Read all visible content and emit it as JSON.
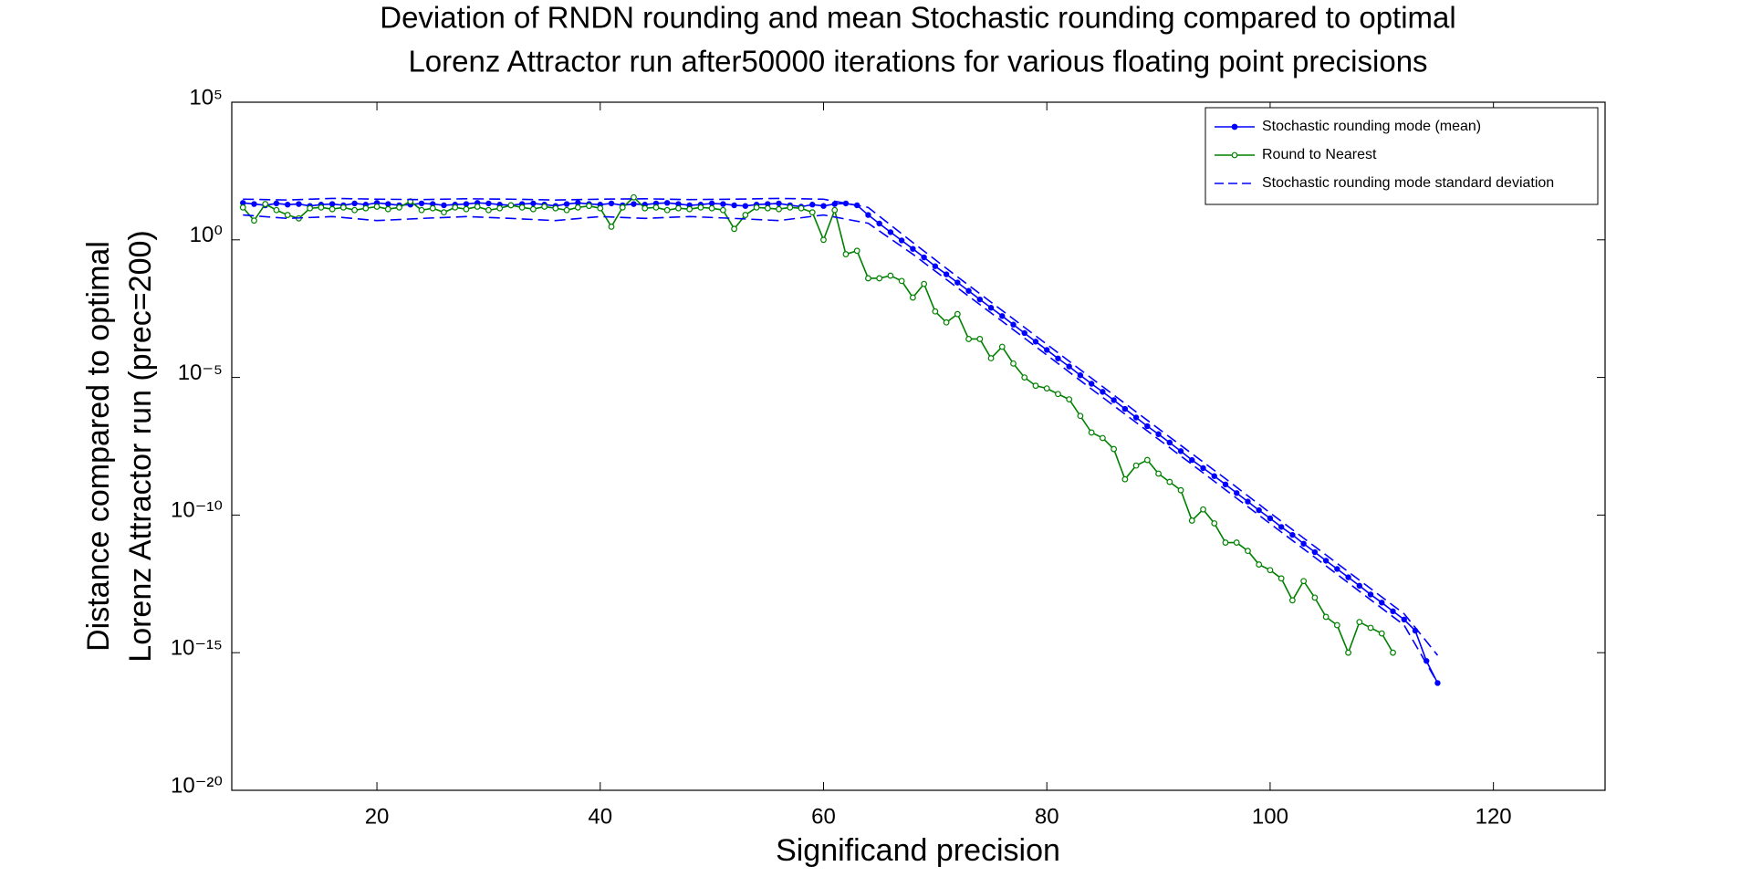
{
  "chart_data": {
    "type": "line",
    "title": [
      "Deviation of RNDN rounding and mean Stochastic rounding compared to optimal",
      "Lorenz Attractor run after50000 iterations for various floating point precisions"
    ],
    "x_label": "Significand precision",
    "y_label": [
      "Distance compared to optimal",
      "Lorenz Attractor run (prec=200)"
    ],
    "xlim": [
      7,
      130
    ],
    "xticks": [
      20,
      40,
      60,
      80,
      100,
      120
    ],
    "ylim": [
      1e-20,
      100000
    ],
    "ylog": true,
    "yticks": [
      {
        "value": 100000,
        "label": "10⁵"
      },
      {
        "value": 1,
        "label": "10⁰"
      },
      {
        "value": 1e-05,
        "label": "10⁻⁵"
      },
      {
        "value": 1e-10,
        "label": "10⁻¹⁰"
      },
      {
        "value": 1e-15,
        "label": "10⁻¹⁵"
      },
      {
        "value": 1e-20,
        "label": "10⁻²⁰"
      }
    ],
    "grid": false,
    "legend": "top-right",
    "series": [
      {
        "name": "Stochastic rounding mode (mean)",
        "color": "#0000ff",
        "marker": "dot",
        "style": "solid",
        "x": [
          8,
          9,
          10,
          11,
          12,
          13,
          14,
          15,
          16,
          17,
          18,
          19,
          20,
          21,
          22,
          23,
          24,
          25,
          26,
          27,
          28,
          29,
          30,
          31,
          32,
          33,
          34,
          35,
          36,
          37,
          38,
          39,
          40,
          41,
          42,
          43,
          44,
          45,
          46,
          47,
          48,
          49,
          50,
          51,
          52,
          53,
          54,
          55,
          56,
          57,
          58,
          59,
          60,
          61,
          62,
          63,
          64,
          65,
          66,
          67,
          68,
          69,
          70,
          71,
          72,
          73,
          74,
          75,
          76,
          77,
          78,
          79,
          80,
          81,
          82,
          83,
          84,
          85,
          86,
          87,
          88,
          89,
          90,
          91,
          92,
          93,
          94,
          95,
          96,
          97,
          98,
          99,
          100,
          101,
          102,
          103,
          104,
          105,
          106,
          107,
          108,
          109,
          110,
          111,
          112,
          113,
          114,
          115
        ],
        "values": [
          22,
          20,
          18,
          21,
          19,
          20,
          17,
          19,
          20,
          18,
          21,
          19,
          22,
          20,
          18,
          19,
          21,
          20,
          18,
          19,
          20,
          22,
          21,
          19,
          18,
          20,
          21,
          19,
          17,
          20,
          22,
          20,
          19,
          21,
          18,
          20,
          19,
          21,
          22,
          20,
          18,
          19,
          21,
          20,
          18,
          17,
          19,
          20,
          21,
          18,
          16,
          19,
          17,
          20,
          21,
          18,
          8,
          3.9,
          1.9,
          0.95,
          0.47,
          0.23,
          0.11,
          0.056,
          0.028,
          0.014,
          0.0068,
          0.0034,
          0.0017,
          0.00083,
          0.00041,
          0.0002,
          0.0001,
          4.9e-05,
          2.5e-05,
          1.2e-05,
          5.9e-06,
          3e-06,
          1.5e-06,
          7.2e-07,
          3.5e-07,
          1.7e-07,
          8.7e-08,
          4.3e-08,
          2.1e-08,
          1e-08,
          5.1e-09,
          2.6e-09,
          1.3e-09,
          6.3e-10,
          3.1e-10,
          1.5e-10,
          7.6e-11,
          3.7e-11,
          1.9e-11,
          9.1e-12,
          4.5e-12,
          2.2e-12,
          1.1e-12,
          5.5e-13,
          2.7e-13,
          1.3e-13,
          6.6e-14,
          3.2e-14,
          1.6e-14,
          6.3e-15,
          5e-16,
          7.9e-17
        ]
      },
      {
        "name": "Round to Nearest",
        "color": "#008000",
        "marker": "circle",
        "style": "solid",
        "x": [
          8,
          9,
          10,
          11,
          12,
          13,
          14,
          15,
          16,
          17,
          18,
          19,
          20,
          21,
          22,
          23,
          24,
          25,
          26,
          27,
          28,
          29,
          30,
          31,
          32,
          33,
          34,
          35,
          36,
          37,
          38,
          39,
          40,
          41,
          42,
          43,
          44,
          45,
          46,
          47,
          48,
          49,
          50,
          51,
          52,
          53,
          54,
          55,
          56,
          57,
          58,
          59,
          60,
          61,
          62,
          63,
          64,
          65,
          66,
          67,
          68,
          69,
          70,
          71,
          72,
          73,
          74,
          75,
          76,
          77,
          78,
          79,
          80,
          81,
          82,
          83,
          84,
          85,
          86,
          87,
          88,
          89,
          90,
          91,
          92,
          93,
          94,
          95,
          96,
          97,
          98,
          99,
          100,
          101,
          102,
          103,
          104,
          105,
          106,
          107,
          108,
          109,
          110,
          111
        ],
        "values": [
          15,
          5,
          20,
          12,
          8,
          6,
          14,
          15,
          13,
          15,
          12,
          14,
          16,
          13,
          15,
          25,
          12,
          14,
          10,
          15,
          13,
          16,
          12,
          14,
          18,
          15,
          13,
          16,
          14,
          12,
          15,
          17,
          14,
          3,
          15,
          35,
          14,
          15,
          12,
          14,
          13,
          15,
          14,
          12,
          2.5,
          8,
          15,
          14,
          13,
          15,
          14,
          10,
          1.0,
          12,
          0.3,
          0.4,
          0.04,
          0.04,
          0.05,
          0.032,
          0.008,
          0.025,
          0.0025,
          0.001,
          0.002,
          0.00025,
          0.00025,
          5e-05,
          0.00013,
          3.2e-05,
          1e-05,
          5e-06,
          4e-06,
          2.5e-06,
          1.6e-06,
          4e-07,
          1e-07,
          6.3e-08,
          2.5e-08,
          2e-09,
          6.3e-09,
          1e-08,
          3.2e-09,
          1.6e-09,
          8e-10,
          6.3e-11,
          1.6e-10,
          5e-11,
          1e-11,
          1e-11,
          5e-12,
          1.6e-12,
          1e-12,
          5e-13,
          8e-14,
          4e-13,
          1e-13,
          2e-14,
          1e-14,
          1e-15,
          1.3e-14,
          8e-15,
          5e-15,
          1e-15
        ]
      },
      {
        "name": "Stochastic rounding mode standard deviation",
        "color": "#0000ff",
        "marker": "none",
        "style": "dashed",
        "x": [
          8,
          12,
          16,
          20,
          24,
          28,
          32,
          36,
          40,
          44,
          48,
          52,
          56,
          60,
          64,
          68,
          72,
          76,
          80,
          84,
          88,
          92,
          96,
          100,
          104,
          108,
          112,
          115
        ],
        "upper": [
          30,
          28,
          32,
          30,
          29,
          31,
          30,
          28,
          30,
          31,
          29,
          30,
          32,
          30,
          15,
          0.8,
          0.045,
          0.0027,
          0.00016,
          9.4e-06,
          5.6e-07,
          3.4e-08,
          2.1e-09,
          1.2e-10,
          7.2e-12,
          4.3e-13,
          2.6e-14,
          8e-16
        ],
        "lower": [
          8,
          6,
          7,
          5,
          6,
          7,
          6,
          5,
          7,
          6,
          7,
          6,
          5,
          8,
          4,
          0.3,
          0.018,
          0.0011,
          6.5e-05,
          3.8e-06,
          2.3e-07,
          1.4e-08,
          8.3e-10,
          4.9e-11,
          2.9e-12,
          1.7e-13,
          1e-14,
          8e-17
        ]
      }
    ]
  }
}
